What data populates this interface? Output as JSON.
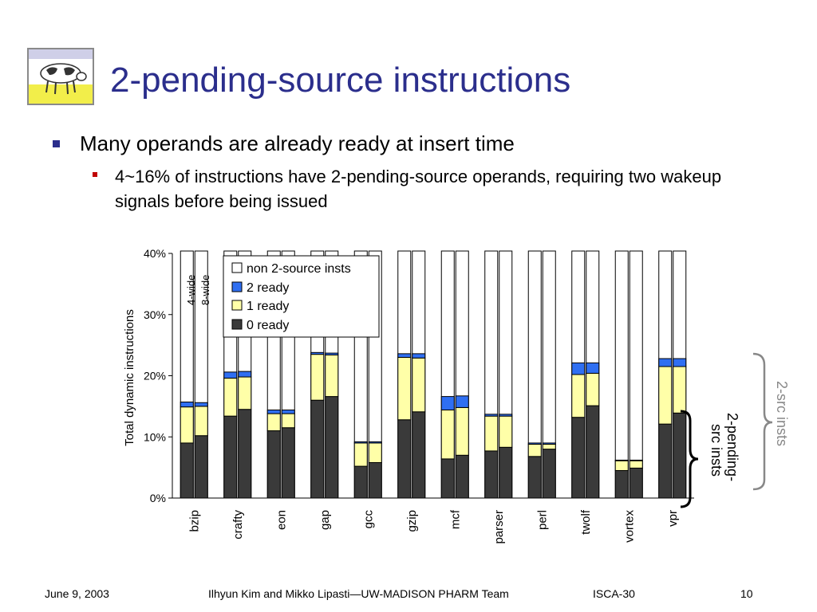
{
  "slide": {
    "title": "2-pending-source instructions",
    "bullet1": "Many operands are already ready at insert time",
    "bullet2": "4~16% of instructions have 2-pending-source operands, requiring two wakeup signals before being issued"
  },
  "footer": {
    "date": "June 9, 2003",
    "authors": "Ilhyun Kim and Mikko Lipasti—UW-MADISON PHARM Team",
    "venue": "ISCA-30",
    "page": "10"
  },
  "chart_data": {
    "type": "bar",
    "stacked": true,
    "ylabel": "Total dynamic instructions",
    "ylim": [
      0,
      40
    ],
    "yticks": [
      "0%",
      "10%",
      "20%",
      "30%",
      "40%"
    ],
    "categories": [
      "bzip",
      "crafty",
      "eon",
      "gap",
      "gcc",
      "gzip",
      "mcf",
      "parser",
      "perl",
      "twolf",
      "vortex",
      "vpr"
    ],
    "bar_labels": [
      "4-wide",
      "8-wide"
    ],
    "legend": [
      "non 2-source insts",
      "2 ready",
      "1 ready",
      "0 ready"
    ],
    "colors": {
      "zero_ready": "#3a3a3a",
      "one_ready": "#ffffa8",
      "two_ready": "#2f6ff2",
      "non_2src": "#ffffff"
    },
    "series": [
      {
        "name": "0 ready",
        "values_4wide": [
          9.0,
          13.4,
          11.0,
          16.0,
          5.2,
          12.8,
          6.4,
          7.7,
          6.8,
          13.2,
          4.5,
          12.1
        ],
        "values_8wide": [
          10.2,
          14.5,
          11.5,
          16.6,
          5.8,
          14.1,
          7.0,
          8.3,
          8.0,
          15.1,
          4.9,
          13.9
        ]
      },
      {
        "name": "1 ready",
        "values_4wide": [
          5.9,
          6.2,
          2.8,
          7.5,
          3.8,
          10.2,
          8.0,
          5.7,
          2.0,
          7.0,
          1.6,
          9.4
        ],
        "values_8wide": [
          4.8,
          5.3,
          2.3,
          6.8,
          3.2,
          8.8,
          7.8,
          5.1,
          0.8,
          5.3,
          1.2,
          7.6
        ]
      },
      {
        "name": "2 ready",
        "values_4wide": [
          0.8,
          1.0,
          0.6,
          0.3,
          0.2,
          0.6,
          2.2,
          0.3,
          0.2,
          1.9,
          0.1,
          1.3
        ],
        "values_8wide": [
          0.6,
          0.9,
          0.6,
          0.3,
          0.2,
          0.7,
          1.9,
          0.3,
          0.2,
          1.7,
          0.1,
          1.3
        ]
      }
    ],
    "brace_labels": {
      "inner": "2-pending-src insts",
      "outer": "2-src insts"
    }
  }
}
